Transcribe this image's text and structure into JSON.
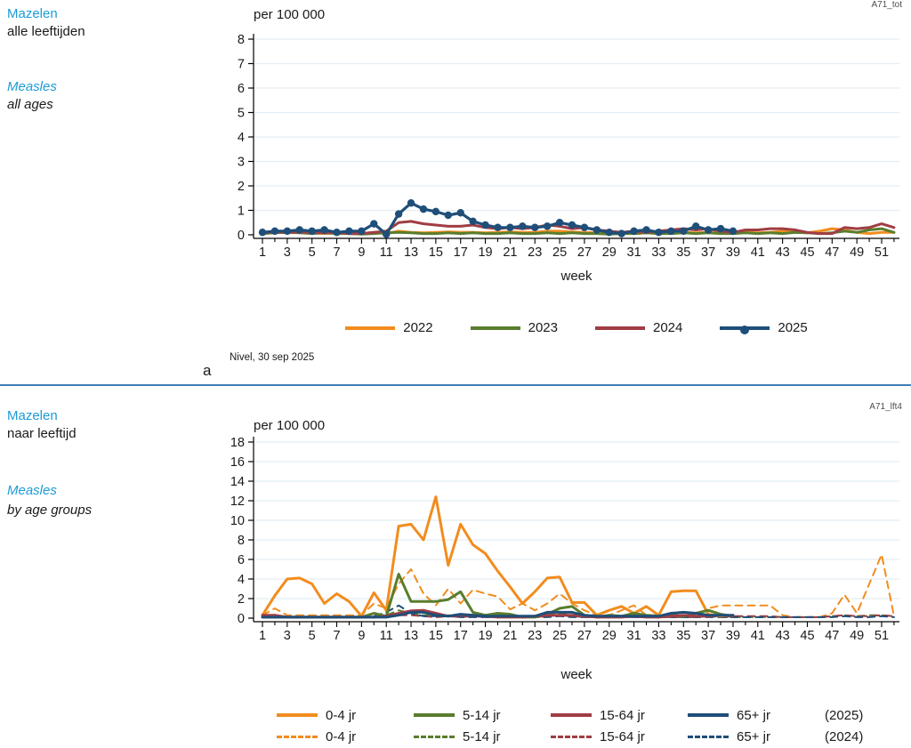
{
  "page": {
    "source_note": "Nivel, 30 sep 2025",
    "panel_marker": "a"
  },
  "colors": {
    "heading_blue": "#1d9bd6",
    "divider_blue": "#3e7cb7",
    "grid": "#e4edf4",
    "axis": "#000000",
    "orange": "#f28c1e",
    "green": "#597d2d",
    "maroon": "#a03d44",
    "navy": "#1f4e79"
  },
  "panels": [
    {
      "title_nl": "Mazelen",
      "subtitle_nl": "alle leeftijden",
      "title_en": "Measles",
      "subtitle_en": "all ages",
      "code": "A71_tot"
    },
    {
      "title_nl": "Mazelen",
      "subtitle_nl": "naar leeftijd",
      "title_en": "Measles",
      "subtitle_en": "by age groups",
      "code": "A71_lft4"
    }
  ],
  "chart_data": [
    {
      "type": "line",
      "title": "per 100 000",
      "xlabel": "week",
      "xlim": [
        1,
        52
      ],
      "xticks": [
        1,
        3,
        5,
        7,
        9,
        11,
        13,
        15,
        17,
        19,
        21,
        23,
        25,
        27,
        29,
        31,
        33,
        35,
        37,
        39,
        41,
        43,
        45,
        47,
        49,
        51
      ],
      "ylim": [
        0,
        8
      ],
      "yticks": [
        0,
        1,
        2,
        3,
        4,
        5,
        6,
        7,
        8
      ],
      "grid": true,
      "legend_position": "bottom",
      "series": [
        {
          "name": "2022",
          "year": "2022",
          "color": "#f28c1e",
          "dash": false,
          "marker": false,
          "values": [
            0.05,
            0.1,
            0.08,
            0.1,
            0.08,
            0.05,
            0.08,
            0.05,
            0.05,
            0.1,
            0.05,
            0.15,
            0.1,
            0.08,
            0.1,
            0.12,
            0.1,
            0.1,
            0.08,
            0.1,
            0.12,
            0.1,
            0.1,
            0.15,
            0.15,
            0.12,
            0.1,
            0.08,
            0.05,
            0.08,
            0.05,
            0.08,
            0.05,
            0.08,
            0.1,
            0.08,
            0.1,
            0.08,
            0.05,
            0.1,
            0.08,
            0.1,
            0.15,
            0.1,
            0.08,
            0.15,
            0.25,
            0.2,
            0.1,
            0.05,
            0.1,
            0.1
          ]
        },
        {
          "name": "2023",
          "year": "2023",
          "color": "#597d2d",
          "dash": false,
          "marker": false,
          "values": [
            0.05,
            0.08,
            0.1,
            0.08,
            0.05,
            0.08,
            0.05,
            0.05,
            0.03,
            0.05,
            0.08,
            0.1,
            0.08,
            0.05,
            0.05,
            0.08,
            0.05,
            0.08,
            0.05,
            0.05,
            0.08,
            0.05,
            0.05,
            0.08,
            0.05,
            0.08,
            0.05,
            0.05,
            0.03,
            0.05,
            0.05,
            0.08,
            0.05,
            0.05,
            0.08,
            0.05,
            0.08,
            0.05,
            0.05,
            0.08,
            0.05,
            0.08,
            0.05,
            0.1,
            0.08,
            0.05,
            0.08,
            0.15,
            0.1,
            0.2,
            0.25,
            0.1
          ]
        },
        {
          "name": "2024",
          "year": "2024",
          "color": "#a03d44",
          "dash": false,
          "marker": false,
          "values": [
            0.1,
            0.1,
            0.12,
            0.1,
            0.1,
            0.08,
            0.1,
            0.05,
            0.05,
            0.1,
            0.15,
            0.5,
            0.55,
            0.45,
            0.4,
            0.35,
            0.35,
            0.4,
            0.3,
            0.25,
            0.3,
            0.25,
            0.3,
            0.4,
            0.35,
            0.25,
            0.3,
            0.2,
            0.15,
            0.1,
            0.15,
            0.1,
            0.15,
            0.2,
            0.25,
            0.2,
            0.25,
            0.15,
            0.1,
            0.2,
            0.2,
            0.25,
            0.25,
            0.2,
            0.1,
            0.05,
            0.05,
            0.3,
            0.25,
            0.3,
            0.45,
            0.3
          ]
        },
        {
          "name": "2025",
          "year": "2025",
          "color": "#1f4e79",
          "dash": false,
          "marker": true,
          "values": [
            0.1,
            0.15,
            0.15,
            0.2,
            0.15,
            0.2,
            0.1,
            0.15,
            0.15,
            0.45,
            0.02,
            0.85,
            1.3,
            1.05,
            0.95,
            0.8,
            0.9,
            0.55,
            0.4,
            0.3,
            0.3,
            0.35,
            0.3,
            0.35,
            0.5,
            0.4,
            0.3,
            0.2,
            0.1,
            0.05,
            0.15,
            0.2,
            0.1,
            0.15,
            0.15,
            0.35,
            0.2,
            0.25,
            0.15
          ]
        }
      ]
    },
    {
      "type": "line",
      "title": "per 100 000",
      "xlabel": "week",
      "xlim": [
        1,
        52
      ],
      "xticks": [
        1,
        3,
        5,
        7,
        9,
        11,
        13,
        15,
        17,
        19,
        21,
        23,
        25,
        27,
        29,
        31,
        33,
        35,
        37,
        39,
        41,
        43,
        45,
        47,
        49,
        51
      ],
      "ylim": [
        0,
        18
      ],
      "yticks": [
        0,
        2,
        4,
        6,
        8,
        10,
        12,
        14,
        16,
        18
      ],
      "grid": true,
      "legend_position": "bottom",
      "legend": {
        "row1_suffix": "(2025)",
        "row2_suffix": "(2024)"
      },
      "series": [
        {
          "name": "0-4 jr",
          "year": "2025",
          "color": "#f28c1e",
          "dash": false,
          "marker": false,
          "values": [
            0.3,
            2.3,
            4.0,
            4.1,
            3.5,
            1.5,
            2.5,
            1.7,
            0.2,
            2.6,
            0.8,
            9.4,
            9.6,
            8.0,
            12.4,
            5.4,
            9.6,
            7.5,
            6.6,
            4.8,
            3.2,
            1.5,
            2.7,
            4.1,
            4.2,
            1.6,
            1.6,
            0.3,
            0.8,
            1.2,
            0.5,
            1.2,
            0.3,
            2.7,
            2.8,
            2.8,
            0.4,
            0.2,
            0.3
          ]
        },
        {
          "name": "5-14 jr",
          "year": "2025",
          "color": "#597d2d",
          "dash": false,
          "marker": false,
          "values": [
            0.1,
            0.1,
            0.1,
            0.1,
            0.1,
            0.1,
            0.1,
            0.1,
            0.1,
            0.5,
            0.2,
            4.5,
            1.7,
            1.7,
            1.7,
            1.9,
            2.7,
            0.6,
            0.3,
            0.5,
            0.4,
            0.1,
            0.1,
            0.4,
            1.0,
            1.2,
            0.3,
            0.1,
            0.3,
            0.2,
            0.5,
            0.3,
            0.2,
            0.3,
            0.2,
            0.5,
            0.8,
            0.4,
            0.2
          ]
        },
        {
          "name": "15-64 jr",
          "year": "2025",
          "color": "#a03d44",
          "dash": false,
          "marker": false,
          "values": [
            0.3,
            0.3,
            0.1,
            0.1,
            0.1,
            0.1,
            0.1,
            0.1,
            0.1,
            0.1,
            0.2,
            0.5,
            0.75,
            0.8,
            0.5,
            0.2,
            0.3,
            0.3,
            0.2,
            0.1,
            0.1,
            0.1,
            0.2,
            0.3,
            0.3,
            0.3,
            0.2,
            0.1,
            0.1,
            0.1,
            0.2,
            0.1,
            0.1,
            0.2,
            0.3,
            0.2,
            0.2,
            0.3,
            0.2
          ]
        },
        {
          "name": "65+ jr",
          "year": "2025",
          "color": "#1f4e79",
          "dash": false,
          "marker": false,
          "values": [
            0.1,
            0.1,
            0.1,
            0.1,
            0.1,
            0.1,
            0.1,
            0.1,
            0.1,
            0.1,
            0.1,
            0.3,
            0.6,
            0.6,
            0.3,
            0.2,
            0.4,
            0.3,
            0.2,
            0.2,
            0.2,
            0.2,
            0.2,
            0.6,
            0.6,
            0.6,
            0.3,
            0.2,
            0.2,
            0.2,
            0.2,
            0.2,
            0.2,
            0.5,
            0.6,
            0.5,
            0.3,
            0.3,
            0.3
          ]
        },
        {
          "name": "0-4 jr",
          "year": "2024",
          "color": "#f28c1e",
          "dash": true,
          "marker": false,
          "values": [
            0.3,
            1.0,
            0.3,
            0.3,
            0.3,
            0.3,
            0.3,
            0.3,
            0.3,
            1.5,
            1.0,
            3.5,
            5.0,
            2.5,
            1.3,
            3.0,
            1.5,
            2.9,
            2.5,
            2.2,
            0.9,
            1.5,
            0.8,
            1.5,
            2.5,
            1.5,
            0.8,
            0.3,
            0.3,
            0.8,
            1.3,
            0.3,
            0.3,
            0.3,
            0.3,
            0.3,
            1.0,
            1.3,
            1.3,
            1.3,
            1.3,
            1.3,
            0.3,
            0.1,
            0.1,
            0.1,
            0.5,
            2.4,
            0.5,
            3.5,
            6.5,
            0.2
          ]
        },
        {
          "name": "5-14 jr",
          "year": "2024",
          "color": "#597d2d",
          "dash": true,
          "marker": false,
          "values": [
            0.1,
            0.2,
            0.1,
            0.1,
            0.1,
            0.1,
            0.1,
            0.1,
            0.1,
            0.2,
            0.3,
            0.8,
            0.5,
            0.3,
            0.2,
            0.3,
            0.2,
            0.3,
            0.2,
            0.3,
            0.2,
            0.1,
            0.1,
            0.3,
            0.5,
            0.3,
            0.2,
            0.1,
            0.1,
            0.2,
            0.3,
            0.1,
            0.1,
            0.1,
            0.1,
            0.1,
            0.2,
            0.1,
            0.1,
            0.1,
            0.1,
            0.1,
            0.1,
            0.1,
            0.1,
            0.1,
            0.2,
            0.3,
            0.2,
            0.3,
            0.3,
            0.2
          ]
        },
        {
          "name": "15-64 jr",
          "year": "2024",
          "color": "#a03d44",
          "dash": true,
          "marker": false,
          "values": [
            0.1,
            0.1,
            0.1,
            0.1,
            0.1,
            0.1,
            0.1,
            0.1,
            0.1,
            0.1,
            0.2,
            0.3,
            0.3,
            0.2,
            0.1,
            0.2,
            0.1,
            0.2,
            0.1,
            0.1,
            0.1,
            0.1,
            0.1,
            0.2,
            0.3,
            0.2,
            0.1,
            0.1,
            0.1,
            0.1,
            0.1,
            0.1,
            0.1,
            0.1,
            0.1,
            0.1,
            0.2,
            0.2,
            0.2,
            0.2,
            0.2,
            0.2,
            0.1,
            0.1,
            0.1,
            0.1,
            0.2,
            0.3,
            0.2,
            0.2,
            0.3,
            0.2
          ]
        },
        {
          "name": "65+ jr",
          "year": "2024",
          "color": "#1f4e79",
          "dash": true,
          "marker": false,
          "values": [
            0.1,
            0.1,
            0.1,
            0.1,
            0.1,
            0.1,
            0.1,
            0.1,
            0.1,
            0.2,
            0.6,
            1.3,
            0.5,
            0.2,
            0.2,
            0.2,
            0.1,
            0.1,
            0.1,
            0.1,
            0.1,
            0.1,
            0.1,
            0.1,
            0.2,
            0.1,
            0.1,
            0.1,
            0.1,
            0.1,
            0.1,
            0.1,
            0.1,
            0.1,
            0.1,
            0.1,
            0.1,
            0.1,
            0.1,
            0.1,
            0.1,
            0.1,
            0.1,
            0.1,
            0.1,
            0.1,
            0.1,
            0.2,
            0.1,
            0.1,
            0.2,
            0.1
          ]
        }
      ]
    }
  ]
}
